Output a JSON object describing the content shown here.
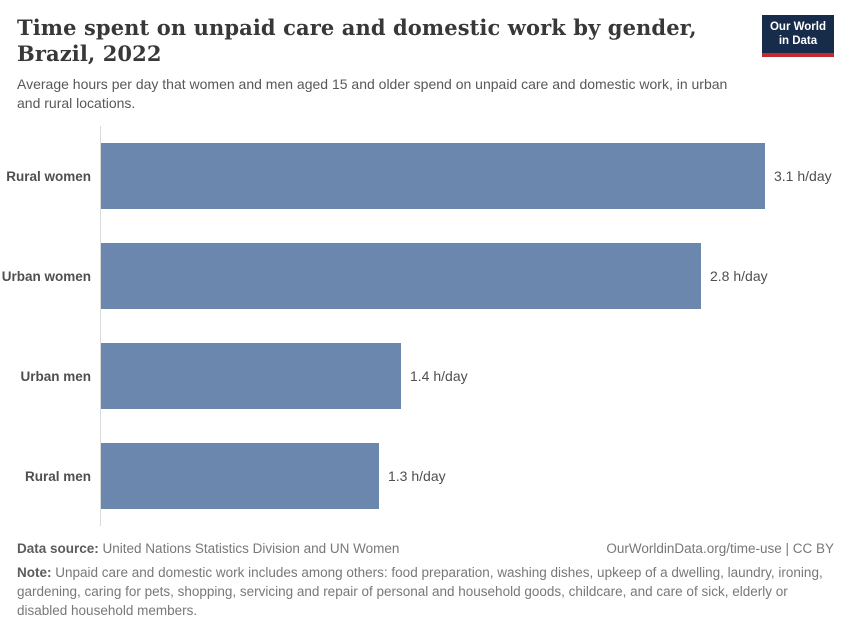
{
  "header": {
    "title": "Time spent on unpaid care and domestic work by gender, Brazil, 2022",
    "subtitle": "Average hours per day that women and men aged 15 and older spend on unpaid care and domestic work, in urban and rural locations.",
    "logo_line1": "Our World",
    "logo_line2": "in Data"
  },
  "chart_data": {
    "type": "bar",
    "orientation": "horizontal",
    "title": "Time spent on unpaid care and domestic work by gender, Brazil, 2022",
    "subtitle": "Average hours per day that women and men aged 15 and older spend on unpaid care and domestic work, in urban and rural locations.",
    "categories": [
      "Rural women",
      "Urban women",
      "Urban men",
      "Rural men"
    ],
    "values": [
      3.1,
      2.8,
      1.4,
      1.3
    ],
    "value_labels": [
      "3.1 h/day",
      "2.8 h/day",
      "1.4 h/day",
      "1.3 h/day"
    ],
    "unit": "h/day",
    "xlim": [
      0,
      3.1
    ],
    "bar_color": "#6c87ae",
    "axis_line_color": "#dadada",
    "grid": false,
    "legend": "none"
  },
  "footer": {
    "source_label": "Data source:",
    "source_text": " United Nations Statistics Division and UN Women",
    "attribution": "OurWorldinData.org/time-use | CC BY",
    "note_label": "Note:",
    "note_text": " Unpaid care and domestic work includes among others: food preparation, washing dishes, upkeep of a dwelling, laundry, ironing, gardening, caring for pets, shopping, servicing and repair of personal and household goods, childcare, and care of sick, elderly or disabled household members."
  }
}
